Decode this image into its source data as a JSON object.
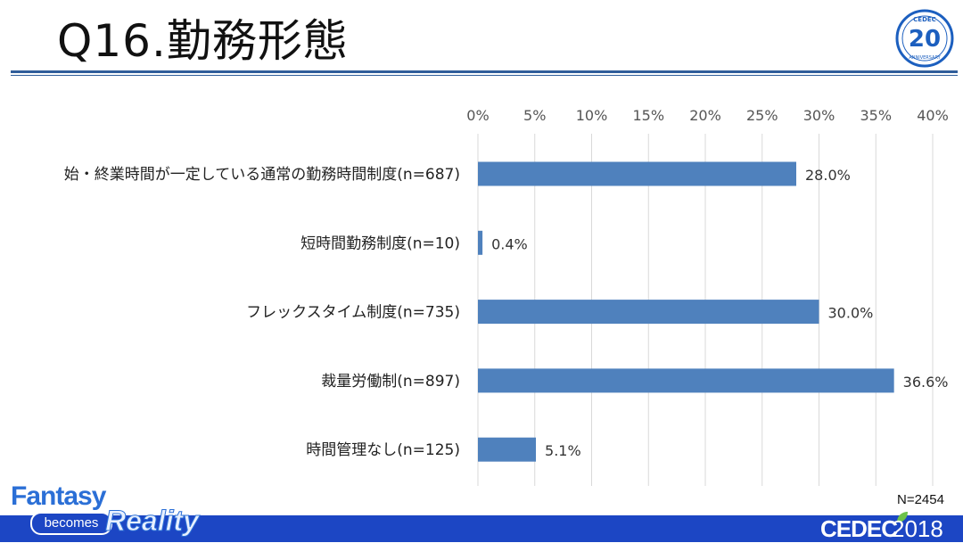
{
  "slide": {
    "title": "Q16.勤務形態",
    "total_n": "N=2454"
  },
  "branding": {
    "tagline_part1": "Fantasy",
    "tagline_part2": "becomes",
    "tagline_part3": "Reality",
    "event_logo_word": "CEDEC",
    "event_logo_year": "2018",
    "anniversary_text": "20",
    "anniversary_word": "ANNIVERSARY",
    "colors": {
      "accent": "#2f5d9a",
      "bar": "#4f81bd",
      "footer": "#1c46c4"
    }
  },
  "chart_data": {
    "type": "bar",
    "orientation": "horizontal",
    "categories": [
      "始・終業時間が一定している通常の勤務時間制度(n=687)",
      "短時間勤務制度(n=10)",
      "フレックスタイム制度(n=735)",
      "裁量労働制(n=897)",
      "時間管理なし(n=125)"
    ],
    "values": [
      28.0,
      0.4,
      30.0,
      36.6,
      5.1
    ],
    "value_labels": [
      "28.0%",
      "0.4%",
      "30.0%",
      "36.6%",
      "5.1%"
    ],
    "x_ticks": [
      "0%",
      "5%",
      "10%",
      "15%",
      "20%",
      "25%",
      "30%",
      "35%",
      "40%"
    ],
    "xlim": [
      0,
      40
    ],
    "axis_position": "top",
    "grid": true,
    "bar_color": "#4f81bd"
  }
}
